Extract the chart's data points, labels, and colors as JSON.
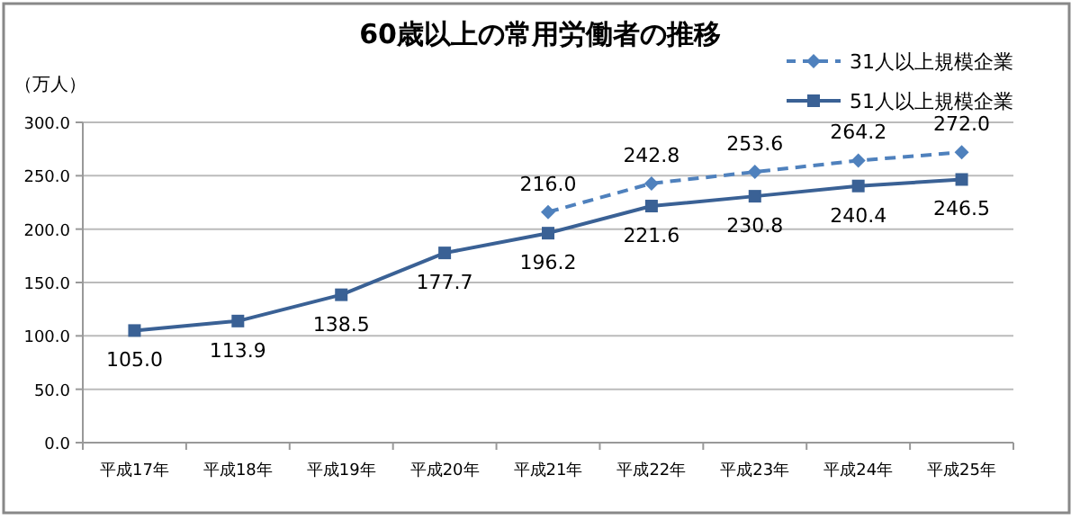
{
  "chart_data": {
    "type": "line",
    "title": "60歳以上の常用労働者の推移",
    "ylabel": "（万人）",
    "categories": [
      "平成17年",
      "平成18年",
      "平成19年",
      "平成20年",
      "平成21年",
      "平成22年",
      "平成23年",
      "平成24年",
      "平成25年"
    ],
    "series": [
      {
        "name": "31人以上規模企業",
        "color": "#4f81bd",
        "marker": "diamond",
        "line_style": "dashed",
        "values": [
          null,
          null,
          null,
          null,
          216.0,
          242.8,
          253.6,
          264.2,
          272.0
        ],
        "value_labels": [
          null,
          null,
          null,
          null,
          "216.0",
          "242.8",
          "253.6",
          "264.2",
          "272.0"
        ]
      },
      {
        "name": "51人以上規模企業",
        "color": "#3a6195",
        "marker": "square",
        "line_style": "solid",
        "values": [
          105.0,
          113.9,
          138.5,
          177.7,
          196.2,
          221.6,
          230.8,
          240.4,
          246.5
        ],
        "value_labels": [
          "105.0",
          "113.9",
          "138.5",
          "177.7",
          "196.2",
          "221.6",
          "230.8",
          "240.4",
          "246.5"
        ]
      }
    ],
    "ylim": [
      0,
      300
    ],
    "yticks": [
      {
        "value": 0,
        "label": "0.0"
      },
      {
        "value": 50,
        "label": "50.0"
      },
      {
        "value": 100,
        "label": "100.0"
      },
      {
        "value": 150,
        "label": "150.0"
      },
      {
        "value": 200,
        "label": "200.0"
      },
      {
        "value": 250,
        "label": "250.0"
      },
      {
        "value": 300,
        "label": "300.0"
      }
    ],
    "grid": "y",
    "legend": "top right"
  }
}
